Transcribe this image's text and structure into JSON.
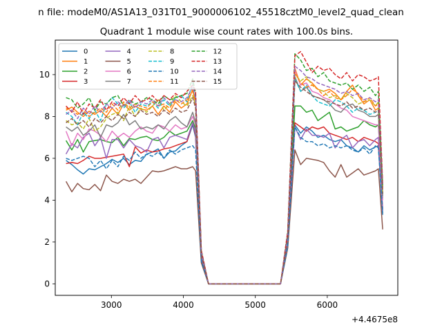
{
  "chart_data": {
    "type": "line",
    "suptitle": "n file: modeM0/AS1A13_031T01_9000006102_45518cztM0_level2_quad_clean",
    "title": "Quadrant 1 module wise count rates with 100.0s bins.",
    "xlabel": "",
    "ylabel": "",
    "offset_label": "+4.4675e8",
    "xlim": [
      2220,
      6980
    ],
    "ylim": [
      -0.55,
      11.65
    ],
    "xticks": [
      3000,
      4000,
      5000,
      6000
    ],
    "yticks": [
      0,
      2,
      4,
      6,
      8,
      10
    ],
    "grid": false,
    "legend": {
      "placement": "top-left",
      "ncol": 4
    },
    "x": [
      2370,
      2450,
      2530,
      2610,
      2690,
      2770,
      2850,
      2930,
      3010,
      3090,
      3170,
      3250,
      3330,
      3410,
      3490,
      3570,
      3650,
      3730,
      3810,
      3890,
      3970,
      4050,
      4130,
      4170,
      4250,
      4350,
      4450,
      4550,
      4650,
      4750,
      4850,
      4950,
      5050,
      5150,
      5250,
      5350,
      5450,
      5550,
      5630,
      5710,
      5790,
      5870,
      5950,
      6030,
      6110,
      6190,
      6270,
      6350,
      6430,
      6510,
      6590,
      6670,
      6710,
      6770
    ],
    "series": [
      {
        "name": "0",
        "color": "#1f77b4",
        "dash": "solid",
        "values": [
          5.9,
          5.7,
          5.45,
          5.25,
          5.5,
          5.45,
          5.6,
          5.75,
          5.95,
          5.8,
          6.0,
          5.7,
          5.9,
          5.85,
          6.2,
          6.3,
          6.45,
          6.0,
          6.3,
          6.35,
          6.6,
          6.8,
          7.6,
          7.0,
          1.1,
          0,
          0,
          0,
          0,
          0,
          0,
          0,
          0,
          0,
          0,
          0,
          1.9,
          7.6,
          7.2,
          7.5,
          7.3,
          7.0,
          7.1,
          6.9,
          6.8,
          6.9,
          6.6,
          6.5,
          6.3,
          6.6,
          6.4,
          6.55,
          6.6,
          3.3
        ]
      },
      {
        "name": "1",
        "color": "#ff7f0e",
        "dash": "solid",
        "values": [
          8.3,
          8.45,
          8.2,
          8.0,
          8.25,
          8.1,
          8.3,
          8.0,
          8.4,
          8.1,
          8.6,
          8.3,
          8.5,
          8.35,
          8.3,
          8.5,
          8.1,
          8.5,
          8.2,
          8.7,
          8.4,
          8.6,
          9.3,
          8.6,
          1.4,
          0,
          0,
          0,
          0,
          0,
          0,
          0,
          0,
          0,
          0,
          0,
          2.2,
          10.3,
          9.5,
          9.8,
          9.6,
          9.3,
          9.2,
          9.3,
          9.1,
          8.8,
          9.2,
          9.5,
          9.0,
          8.6,
          8.8,
          8.3,
          8.4,
          4.6
        ]
      },
      {
        "name": "2",
        "color": "#2ca02c",
        "dash": "solid",
        "values": [
          6.85,
          6.4,
          6.9,
          6.3,
          6.8,
          6.85,
          6.9,
          6.8,
          6.75,
          7.0,
          6.6,
          6.95,
          6.9,
          7.0,
          7.05,
          6.9,
          6.85,
          7.0,
          7.3,
          7.1,
          7.2,
          7.3,
          7.8,
          7.4,
          1.3,
          0,
          0,
          0,
          0,
          0,
          0,
          0,
          0,
          0,
          0,
          0,
          2.1,
          8.5,
          8.5,
          8.2,
          8.3,
          7.8,
          8.0,
          8.2,
          7.4,
          7.5,
          7.3,
          7.4,
          7.5,
          7.8,
          7.6,
          7.5,
          7.6,
          4.1
        ]
      },
      {
        "name": "3",
        "color": "#d62728",
        "dash": "solid",
        "values": [
          5.75,
          5.8,
          5.75,
          5.9,
          6.1,
          6.0,
          6.0,
          6.05,
          6.1,
          6.15,
          6.2,
          5.6,
          6.55,
          6.25,
          6.4,
          6.3,
          6.35,
          6.45,
          6.5,
          6.6,
          6.7,
          6.8,
          7.7,
          7.1,
          1.3,
          0,
          0,
          0,
          0,
          0,
          0,
          0,
          0,
          0,
          0,
          0,
          2.0,
          7.7,
          7.5,
          7.3,
          7.5,
          7.4,
          7.5,
          7.2,
          7.1,
          7.0,
          6.9,
          7.0,
          6.8,
          7.0,
          6.9,
          6.8,
          6.7,
          3.6
        ]
      },
      {
        "name": "4",
        "color": "#9467bd",
        "dash": "solid",
        "values": [
          6.2,
          6.7,
          6.5,
          7.0,
          7.2,
          6.6,
          7.0,
          6.0,
          6.9,
          6.9,
          6.5,
          6.9,
          6.6,
          6.5,
          6.3,
          6.9,
          7.0,
          6.5,
          7.0,
          7.1,
          7.0,
          6.9,
          7.7,
          7.2,
          1.3,
          0,
          0,
          0,
          0,
          0,
          0,
          0,
          0,
          0,
          0,
          0,
          1.9,
          7.5,
          6.9,
          7.4,
          7.1,
          7.1,
          7.0,
          7.2,
          6.5,
          6.9,
          7.1,
          6.5,
          6.8,
          6.9,
          6.6,
          6.9,
          7.0,
          3.5
        ]
      },
      {
        "name": "5",
        "color": "#8c564b",
        "dash": "solid",
        "values": [
          4.9,
          4.4,
          4.8,
          4.55,
          4.5,
          4.75,
          4.45,
          5.2,
          4.9,
          4.8,
          5.0,
          4.9,
          5.0,
          4.8,
          5.1,
          5.4,
          5.35,
          5.4,
          5.5,
          5.6,
          5.5,
          5.5,
          5.6,
          5.4,
          1.0,
          0,
          0,
          0,
          0,
          0,
          0,
          0,
          0,
          0,
          0,
          0,
          1.7,
          6.4,
          5.7,
          6.0,
          5.95,
          5.9,
          5.8,
          5.4,
          5.1,
          5.7,
          5.1,
          5.3,
          5.5,
          5.2,
          5.3,
          5.4,
          5.5,
          2.6
        ]
      },
      {
        "name": "6",
        "color": "#e377c2",
        "dash": "solid",
        "values": [
          7.3,
          6.6,
          7.2,
          6.9,
          7.4,
          7.3,
          7.1,
          6.8,
          7.3,
          7.0,
          7.2,
          7.0,
          7.3,
          7.5,
          7.3,
          7.2,
          7.6,
          7.5,
          7.3,
          7.6,
          7.4,
          7.5,
          8.0,
          7.6,
          1.4,
          0,
          0,
          0,
          0,
          0,
          0,
          0,
          0,
          0,
          0,
          0,
          2.1,
          10.2,
          9.5,
          9.6,
          9.2,
          9.1,
          8.9,
          8.8,
          8.6,
          8.4,
          8.3,
          8.0,
          7.9,
          7.8,
          7.7,
          7.6,
          7.6,
          4.0
        ]
      },
      {
        "name": "7",
        "color": "#7f7f7f",
        "dash": "solid",
        "values": [
          7.5,
          7.3,
          7.5,
          7.1,
          7.3,
          7.6,
          7.0,
          7.6,
          7.5,
          7.7,
          8.1,
          7.6,
          7.8,
          7.4,
          7.5,
          7.4,
          7.6,
          7.4,
          7.8,
          8.0,
          7.7,
          7.5,
          8.2,
          7.7,
          1.4,
          0,
          0,
          0,
          0,
          0,
          0,
          0,
          0,
          0,
          0,
          0,
          2.2,
          9.9,
          9.2,
          9.4,
          9.0,
          8.9,
          8.8,
          8.6,
          8.3,
          8.2,
          8.5,
          8.6,
          8.3,
          8.2,
          8.0,
          8.0,
          8.1,
          4.2
        ]
      },
      {
        "name": "8",
        "color": "#bcbd22",
        "dash": "dashed",
        "values": [
          7.8,
          7.6,
          7.7,
          7.4,
          7.9,
          7.3,
          7.5,
          7.9,
          8.1,
          8.2,
          7.8,
          8.5,
          8.0,
          8.4,
          8.2,
          8.5,
          8.8,
          8.3,
          8.6,
          9.0,
          8.7,
          8.5,
          9.0,
          8.6,
          1.5,
          0,
          0,
          0,
          0,
          0,
          0,
          0,
          0,
          0,
          0,
          0,
          2.3,
          10.0,
          9.7,
          9.9,
          9.5,
          9.3,
          9.2,
          8.9,
          9.0,
          8.8,
          9.1,
          8.9,
          8.6,
          8.7,
          8.8,
          8.5,
          8.7,
          4.4
        ]
      },
      {
        "name": "9",
        "color": "#17becf",
        "dash": "dashed",
        "values": [
          8.2,
          8.0,
          7.6,
          8.2,
          7.9,
          8.3,
          7.8,
          8.6,
          8.9,
          8.6,
          8.4,
          8.7,
          8.2,
          8.6,
          8.5,
          8.7,
          8.4,
          8.8,
          8.5,
          8.9,
          9.0,
          8.7,
          9.6,
          8.9,
          1.5,
          0,
          0,
          0,
          0,
          0,
          0,
          0,
          0,
          0,
          0,
          0,
          2.2,
          9.8,
          9.2,
          9.5,
          9.0,
          8.7,
          8.6,
          8.5,
          8.8,
          8.7,
          8.5,
          8.2,
          8.4,
          8.3,
          8.1,
          8.2,
          8.3,
          4.3
        ]
      },
      {
        "name": "10",
        "color": "#1f77b4",
        "dash": "dashed",
        "values": [
          6.0,
          5.9,
          6.0,
          6.1,
          6.0,
          5.6,
          5.9,
          5.5,
          5.9,
          5.6,
          6.1,
          5.9,
          6.3,
          6.0,
          6.2,
          6.1,
          6.3,
          6.0,
          6.4,
          6.2,
          6.4,
          6.5,
          6.6,
          6.4,
          1.1,
          0,
          0,
          0,
          0,
          0,
          0,
          0,
          0,
          0,
          0,
          0,
          1.8,
          7.5,
          7.0,
          6.8,
          6.8,
          6.6,
          6.7,
          6.5,
          6.6,
          6.5,
          6.6,
          6.4,
          6.3,
          6.5,
          6.2,
          6.6,
          6.5,
          3.4
        ]
      },
      {
        "name": "11",
        "color": "#ff7f0e",
        "dash": "dashed",
        "values": [
          8.4,
          8.3,
          8.1,
          8.3,
          8.0,
          8.2,
          8.4,
          8.2,
          8.6,
          8.3,
          8.7,
          8.4,
          8.6,
          8.5,
          8.4,
          8.7,
          8.5,
          8.6,
          8.4,
          8.8,
          8.6,
          8.8,
          9.2,
          8.8,
          1.5,
          0,
          0,
          0,
          0,
          0,
          0,
          0,
          0,
          0,
          0,
          0,
          2.3,
          10.1,
          9.6,
          9.4,
          9.5,
          9.3,
          9.0,
          9.2,
          8.9,
          8.8,
          9.0,
          9.3,
          9.1,
          8.7,
          8.9,
          8.5,
          8.6,
          4.5
        ]
      },
      {
        "name": "12",
        "color": "#2ca02c",
        "dash": "dashed",
        "values": [
          8.9,
          8.8,
          8.4,
          8.6,
          8.9,
          8.3,
          8.7,
          8.6,
          8.9,
          9.0,
          8.5,
          8.8,
          8.6,
          8.7,
          8.9,
          8.8,
          8.6,
          9.0,
          8.8,
          8.9,
          9.0,
          9.1,
          9.8,
          9.1,
          1.6,
          0,
          0,
          0,
          0,
          0,
          0,
          0,
          0,
          0,
          0,
          0,
          2.5,
          11.0,
          10.7,
          10.2,
          10.3,
          9.9,
          10.1,
          9.7,
          9.6,
          9.5,
          9.6,
          9.3,
          9.5,
          9.2,
          9.4,
          9.0,
          9.2,
          4.7
        ]
      },
      {
        "name": "13",
        "color": "#d62728",
        "dash": "dashed",
        "values": [
          8.5,
          8.2,
          8.7,
          8.1,
          8.6,
          8.4,
          8.8,
          8.3,
          8.7,
          8.5,
          8.9,
          8.6,
          9.0,
          8.7,
          8.8,
          9.0,
          8.7,
          9.0,
          8.8,
          9.1,
          8.9,
          9.2,
          9.5,
          9.2,
          1.6,
          0,
          0,
          0,
          0,
          0,
          0,
          0,
          0,
          0,
          0,
          0,
          2.5,
          10.9,
          11.1,
          10.6,
          10.1,
          10.4,
          10.2,
          10.3,
          10.0,
          9.8,
          10.1,
          9.7,
          10.0,
          9.9,
          9.7,
          9.8,
          9.9,
          4.8
        ]
      },
      {
        "name": "14",
        "color": "#9467bd",
        "dash": "dashed",
        "values": [
          8.1,
          8.3,
          7.9,
          8.4,
          8.1,
          8.5,
          8.2,
          8.6,
          8.4,
          8.7,
          8.5,
          8.8,
          8.4,
          8.7,
          8.6,
          8.8,
          8.5,
          8.9,
          8.6,
          8.8,
          8.7,
          8.9,
          9.4,
          8.9,
          1.5,
          0,
          0,
          0,
          0,
          0,
          0,
          0,
          0,
          0,
          0,
          0,
          2.3,
          10.4,
          10.2,
          9.9,
          9.8,
          9.6,
          9.5,
          9.4,
          9.3,
          9.1,
          9.2,
          9.0,
          9.1,
          8.8,
          8.9,
          8.7,
          8.8,
          4.6
        ]
      },
      {
        "name": "15",
        "color": "#8c564b",
        "dash": "dashed",
        "values": [
          7.7,
          7.9,
          7.6,
          7.8,
          7.5,
          7.9,
          7.7,
          8.0,
          7.8,
          8.1,
          7.9,
          8.2,
          8.0,
          8.3,
          8.1,
          8.2,
          8.0,
          8.3,
          8.1,
          8.4,
          8.2,
          8.3,
          8.9,
          8.4,
          1.4,
          0,
          0,
          0,
          0,
          0,
          0,
          0,
          0,
          0,
          0,
          0,
          2.2,
          9.7,
          9.4,
          9.2,
          9.0,
          8.9,
          8.8,
          8.7,
          8.6,
          8.5,
          8.7,
          8.4,
          8.5,
          8.3,
          8.4,
          8.2,
          8.3,
          4.3
        ]
      }
    ]
  }
}
